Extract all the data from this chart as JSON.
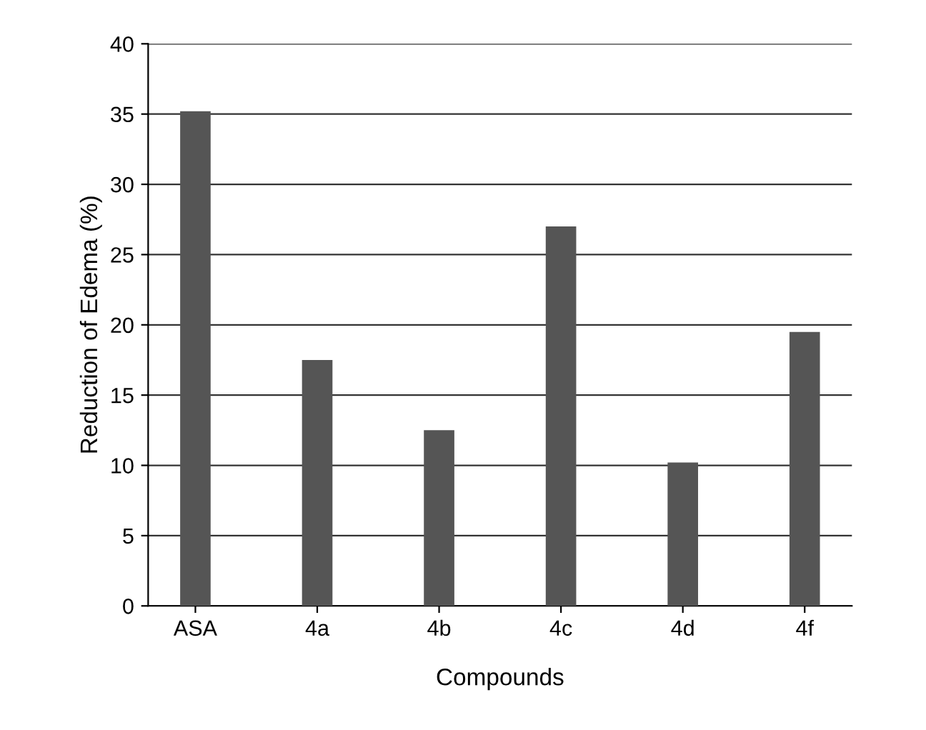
{
  "chart_data": {
    "type": "bar",
    "xlabel": "Compounds",
    "ylabel": "Reduction of Edema (%)",
    "categories": [
      "ASA",
      "4a",
      "4b",
      "4c",
      "4d",
      "4f"
    ],
    "values": [
      35.2,
      17.5,
      12.5,
      27,
      10.2,
      19.5
    ],
    "color": "#555555",
    "ylim": [
      0,
      40
    ],
    "yticks": [
      0,
      5,
      10,
      15,
      20,
      25,
      30,
      35,
      40
    ],
    "grid": "y"
  }
}
